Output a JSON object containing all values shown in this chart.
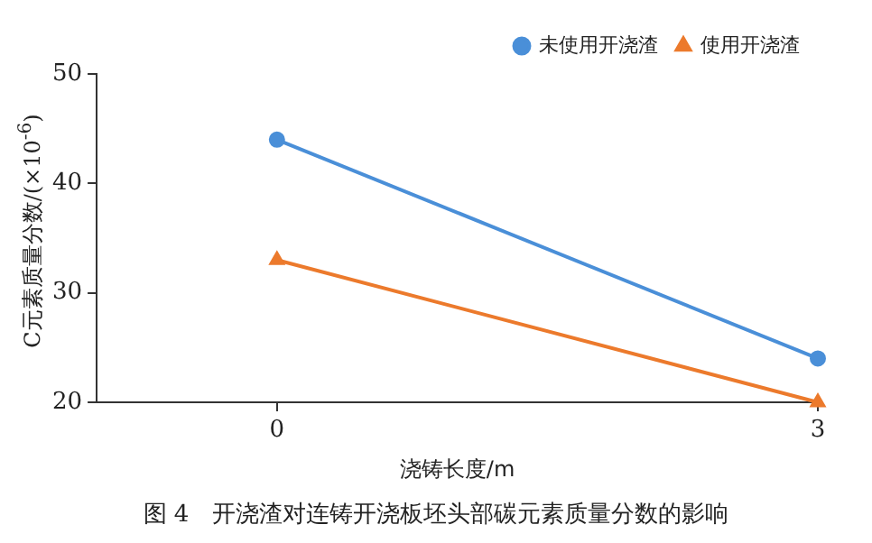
{
  "chart_data": {
    "type": "line",
    "xlabel": "浇铸长度/m",
    "ylabel": "C元素质量分数/(×10$^{-6}$)",
    "x": [
      0,
      3
    ],
    "series": [
      {
        "name": "未使用开浇渣",
        "color": "#4a8fd8",
        "values": [
          44,
          24
        ],
        "marker": "circle"
      },
      {
        "name": "使用开浇渣",
        "color": "#ec7a2c",
        "values": [
          33,
          20
        ],
        "marker": "triangle"
      }
    ],
    "xlim": [
      -1,
      3
    ],
    "xticks": [
      0,
      3
    ],
    "ylim": [
      20,
      50
    ],
    "yticks": [
      20,
      30,
      40,
      50
    ],
    "grid": false,
    "legend": "top right",
    "annotations": [
      "图 4　开浇渣对连铸开浇板坯头部碳元素质量分数的影响"
    ]
  }
}
